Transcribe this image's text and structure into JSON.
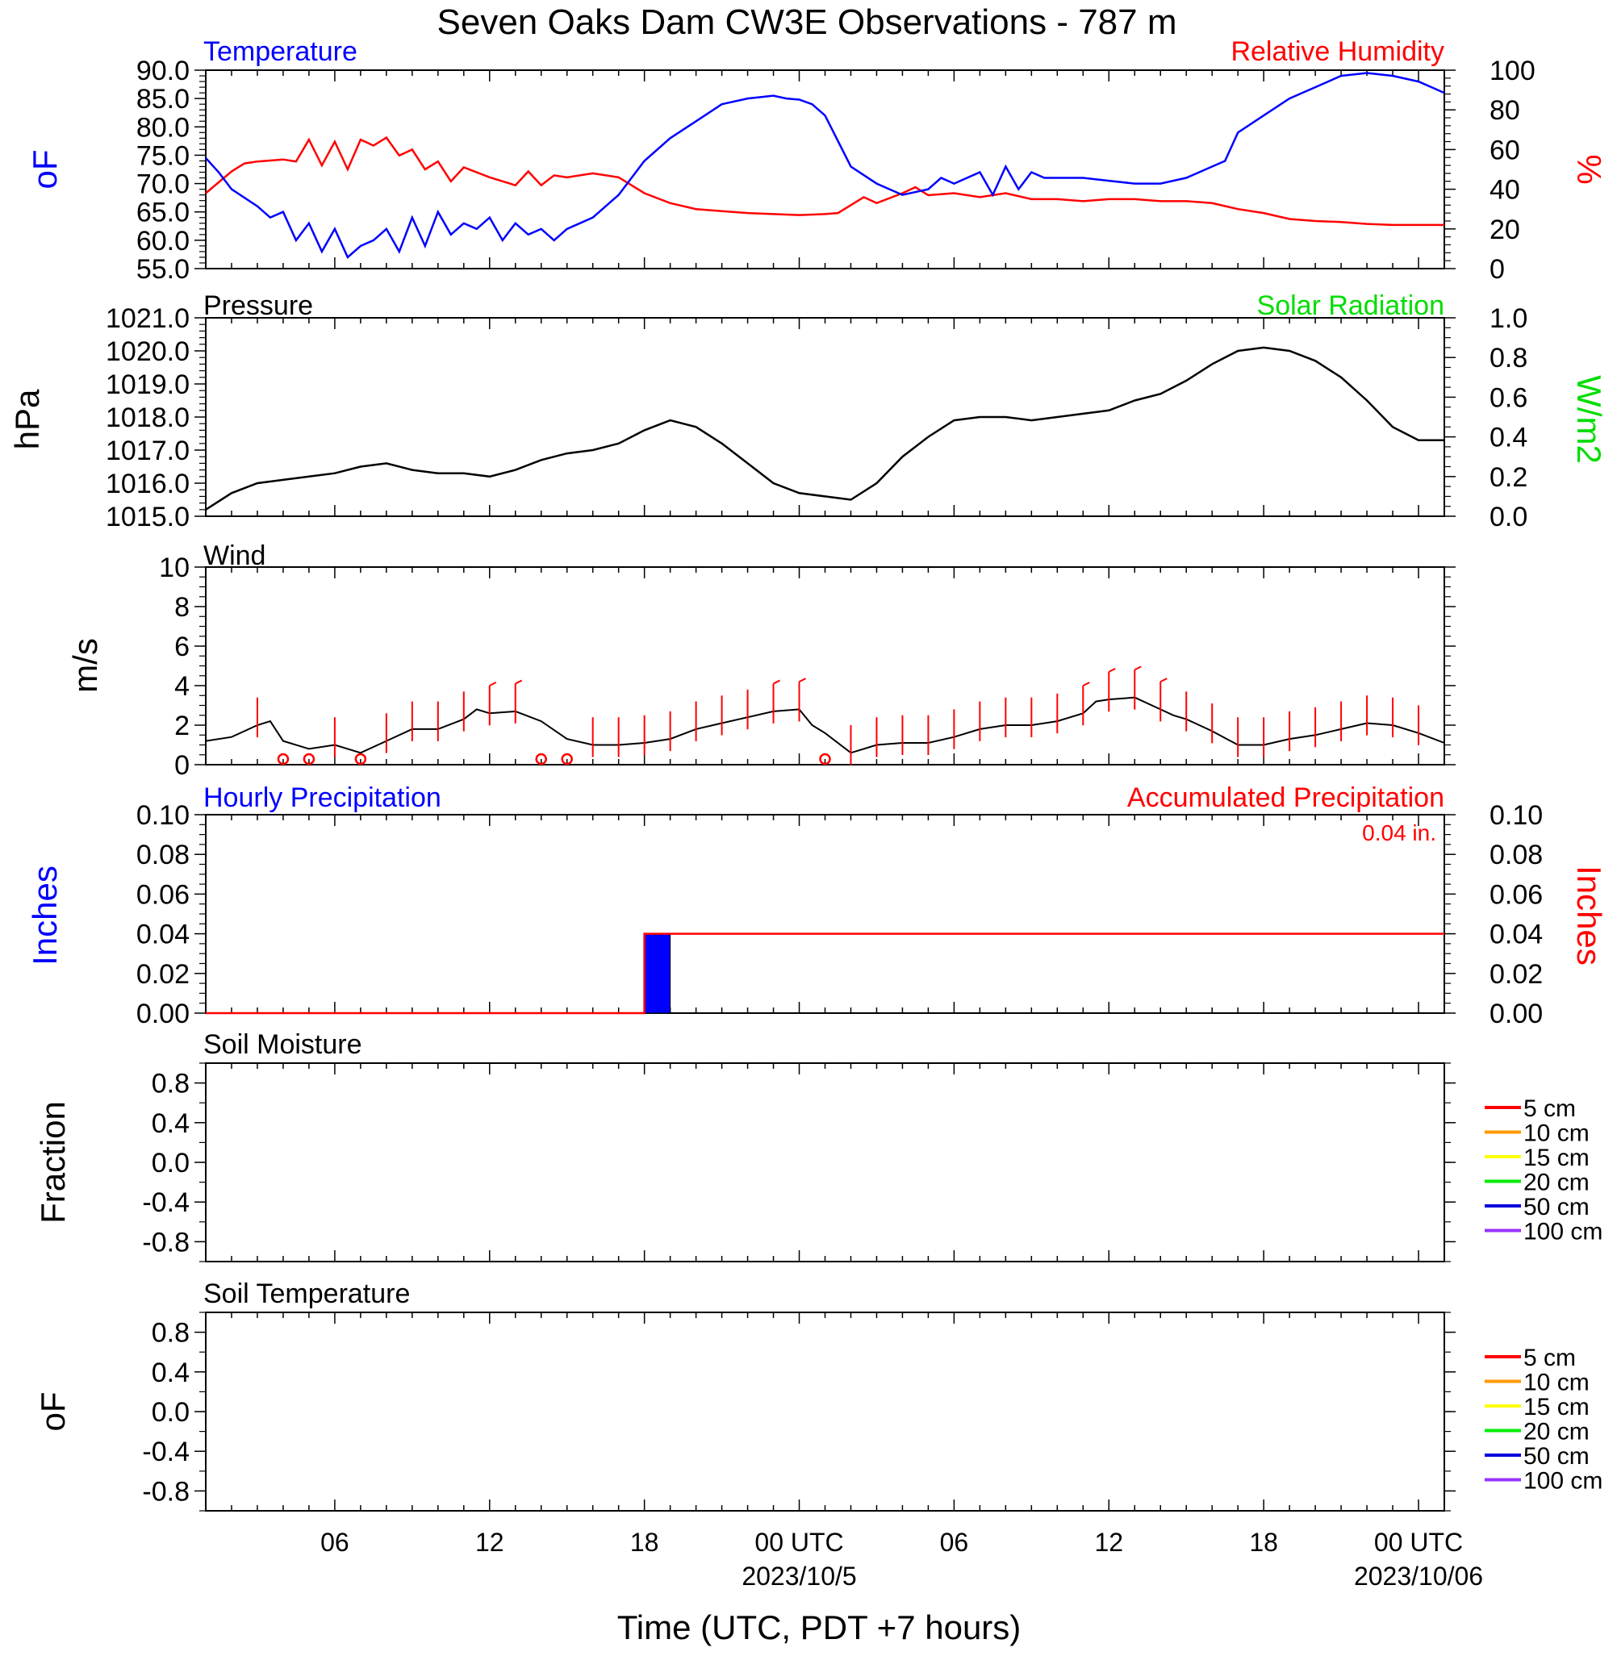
{
  "title": "Seven Oaks Dam CW3E Observations - 787 m",
  "colors": {
    "temperature": "#0000ff",
    "humidity": "#ff0000",
    "pressure": "#000000",
    "solar": "#00dd00",
    "wind": "#000000",
    "barbs": "#ff0000",
    "hourly_precip": "#0000ff",
    "accum_precip": "#ff0000",
    "axis": "#000000"
  },
  "x_axis": {
    "label": "Time (UTC, PDT +7 hours)",
    "range_hours": [
      0,
      48
    ],
    "ticks": [
      {
        "h": 5,
        "label": "06"
      },
      {
        "h": 11,
        "label": "12"
      },
      {
        "h": 17,
        "label": "18"
      },
      {
        "h": 23,
        "label": "00 UTC"
      },
      {
        "h": 29,
        "label": "06"
      },
      {
        "h": 35,
        "label": "12"
      },
      {
        "h": 41,
        "label": "18"
      },
      {
        "h": 47,
        "label": "00 UTC"
      }
    ],
    "dates": [
      {
        "h": 23,
        "label": "2023/10/5"
      },
      {
        "h": 47,
        "label": "2023/10/06"
      }
    ]
  },
  "panels": {
    "temp_rh": {
      "left_title": "Temperature",
      "right_title": "Relative Humidity",
      "left_unit": "oF",
      "right_unit": "%",
      "left_ticks": [
        "90.0",
        "85.0",
        "80.0",
        "75.0",
        "70.0",
        "65.0",
        "60.0",
        "55.0"
      ],
      "right_ticks": [
        "100",
        "80",
        "60",
        "40",
        "20",
        "0"
      ]
    },
    "pressure": {
      "left_title": "Pressure",
      "right_title": "Solar Radiation",
      "left_unit": "hPa",
      "right_unit": "W/m2",
      "left_ticks": [
        "1021.0",
        "1020.0",
        "1019.0",
        "1018.0",
        "1017.0",
        "1016.0",
        "1015.0"
      ],
      "right_ticks": [
        "1.0",
        "0.8",
        "0.6",
        "0.4",
        "0.2",
        "0.0"
      ]
    },
    "wind": {
      "left_title": "Wind",
      "left_unit": "m/s",
      "left_ticks": [
        "10",
        "8",
        "6",
        "4",
        "2",
        "0"
      ]
    },
    "precip": {
      "left_title": "Hourly Precipitation",
      "right_title": "Accumulated Precipitation",
      "total": "0.04 in.",
      "left_unit": "Inches",
      "right_unit": "Inches",
      "left_ticks": [
        "0.10",
        "0.08",
        "0.06",
        "0.04",
        "0.02",
        "0.00"
      ],
      "right_ticks": [
        "0.10",
        "0.08",
        "0.06",
        "0.04",
        "0.02",
        "0.00"
      ]
    },
    "soil_moisture": {
      "left_title": "Soil Moisture",
      "left_unit": "Fraction",
      "left_ticks": [
        "0.8",
        "0.4",
        "0.0",
        "-0.4",
        "-0.8"
      ]
    },
    "soil_temp": {
      "left_title": "Soil Temperature",
      "left_unit": "oF",
      "left_ticks": [
        "0.8",
        "0.4",
        "0.0",
        "-0.4",
        "-0.8"
      ]
    }
  },
  "soil_legend": [
    {
      "label": "5 cm",
      "color": "#ff0000"
    },
    {
      "label": "10 cm",
      "color": "#ff9900"
    },
    {
      "label": "15 cm",
      "color": "#ffff00"
    },
    {
      "label": "20 cm",
      "color": "#00ee00"
    },
    {
      "label": "50 cm",
      "color": "#0000dd"
    },
    {
      "label": "100 cm",
      "color": "#9933ff"
    }
  ],
  "chart_data": [
    {
      "type": "line",
      "title": "Temperature / Relative Humidity",
      "x_unit": "hours since start (0 = 2023-10-04 01 UTC)",
      "series": [
        {
          "name": "Temperature",
          "axis": "left",
          "ylim": [
            55,
            90
          ],
          "x": [
            0,
            0.5,
            1,
            2,
            2.5,
            3,
            3.5,
            4,
            4.5,
            5,
            5.5,
            6,
            6.5,
            7,
            7.5,
            8,
            8.5,
            9,
            9.5,
            10,
            10.5,
            11,
            11.5,
            12,
            12.5,
            13,
            13.5,
            14,
            15,
            16,
            17,
            18,
            19,
            20,
            21,
            22,
            22.5,
            23,
            23.5,
            24,
            25,
            26,
            26.5,
            27,
            28,
            28.5,
            29,
            30,
            30.5,
            31,
            31.5,
            32,
            32.5,
            33,
            34,
            35,
            36,
            37,
            38,
            39,
            39.5,
            40,
            41,
            42,
            43,
            44,
            45,
            46,
            47,
            48
          ],
          "y": [
            74.5,
            72,
            69,
            66,
            64,
            65,
            60,
            63,
            58,
            62,
            57,
            59,
            60,
            62,
            58,
            64,
            59,
            65,
            61,
            63,
            62,
            64,
            60,
            63,
            61,
            62,
            60,
            62,
            64,
            68,
            74,
            78,
            81,
            84,
            85,
            85.5,
            85,
            84.8,
            84,
            82,
            73,
            70,
            69,
            68,
            69,
            71,
            70,
            72,
            68,
            73,
            69,
            72,
            71,
            71,
            71,
            70.5,
            70,
            70,
            71,
            73,
            74,
            79,
            82,
            85,
            87,
            89,
            89.5,
            89,
            88,
            86
          ]
        },
        {
          "name": "Relative Humidity",
          "axis": "right",
          "ylim": [
            0,
            100
          ],
          "x": [
            0,
            1,
            1.5,
            2,
            3,
            3.5,
            4,
            4.5,
            5,
            5.5,
            6,
            6.5,
            7,
            7.5,
            8,
            8.5,
            9,
            9.5,
            10,
            11,
            12,
            12.5,
            13,
            13.5,
            14,
            15,
            16,
            17,
            18,
            19,
            20,
            21,
            22,
            23,
            24,
            24.5,
            25,
            25.5,
            26,
            27,
            27.5,
            28,
            29,
            30,
            31,
            32,
            33,
            34,
            35,
            36,
            37,
            38,
            39,
            40,
            41,
            42,
            43,
            44,
            45,
            46,
            47,
            48
          ],
          "y": [
            38,
            49,
            53,
            54,
            55,
            54,
            65,
            52,
            64,
            50,
            65,
            62,
            66,
            57,
            60,
            50,
            54,
            44,
            51,
            46,
            42,
            49,
            42,
            47,
            46,
            48,
            46,
            38,
            33,
            30,
            29,
            28,
            27.5,
            27,
            27.5,
            28,
            32,
            36,
            33,
            38,
            41,
            37,
            38,
            36,
            38,
            35,
            35,
            34,
            35,
            35,
            34,
            34,
            33,
            30,
            28,
            25,
            24,
            23.5,
            22.5,
            22,
            22,
            22
          ]
        }
      ]
    },
    {
      "type": "line",
      "title": "Pressure",
      "series": [
        {
          "name": "Pressure",
          "ylim": [
            1015,
            1021
          ],
          "x": [
            0,
            1,
            2,
            3,
            4,
            5,
            6,
            7,
            8,
            9,
            10,
            11,
            12,
            13,
            14,
            15,
            16,
            17,
            18,
            19,
            20,
            21,
            22,
            23,
            24,
            25,
            26,
            27,
            28,
            29,
            30,
            31,
            32,
            33,
            34,
            35,
            36,
            37,
            38,
            39,
            40,
            41,
            42,
            43,
            44,
            45,
            46,
            47,
            48
          ],
          "y": [
            1015.2,
            1015.7,
            1016.0,
            1016.1,
            1016.2,
            1016.3,
            1016.5,
            1016.6,
            1016.4,
            1016.3,
            1016.3,
            1016.2,
            1016.4,
            1016.7,
            1016.9,
            1017.0,
            1017.2,
            1017.6,
            1017.9,
            1017.7,
            1017.2,
            1016.6,
            1016.0,
            1015.7,
            1015.6,
            1015.5,
            1016.0,
            1016.8,
            1017.4,
            1017.9,
            1018.0,
            1018.0,
            1017.9,
            1018.0,
            1018.1,
            1018.2,
            1018.5,
            1018.7,
            1019.1,
            1019.6,
            1020.0,
            1020.1,
            1020.0,
            1019.7,
            1019.2,
            1018.5,
            1017.7,
            1017.3,
            1017.3
          ]
        }
      ]
    },
    {
      "type": "line",
      "title": "Wind",
      "series": [
        {
          "name": "Wind speed",
          "ylim": [
            0,
            10
          ],
          "x": [
            0,
            1,
            2,
            2.5,
            3,
            4,
            5,
            6,
            7,
            8,
            9,
            10,
            10.5,
            11,
            12,
            13,
            14,
            15,
            16,
            17,
            18,
            19,
            20,
            21,
            22,
            23,
            23.5,
            24,
            25,
            26,
            27,
            28,
            29,
            30,
            31,
            32,
            33,
            34,
            34.5,
            35,
            36,
            37,
            37.5,
            38,
            39,
            40,
            41,
            42,
            43,
            44,
            45,
            46,
            47,
            48
          ],
          "y": [
            1.2,
            1.4,
            2.0,
            2.2,
            1.2,
            0.8,
            1.0,
            0.6,
            1.2,
            1.8,
            1.8,
            2.3,
            2.8,
            2.6,
            2.7,
            2.2,
            1.3,
            1.0,
            1.0,
            1.1,
            1.3,
            1.8,
            2.1,
            2.4,
            2.7,
            2.8,
            2.0,
            1.6,
            0.6,
            1.0,
            1.1,
            1.1,
            1.4,
            1.8,
            2.0,
            2.0,
            2.2,
            2.6,
            3.2,
            3.3,
            3.4,
            2.8,
            2.5,
            2.3,
            1.7,
            1.0,
            1.0,
            1.3,
            1.5,
            1.8,
            2.1,
            2.0,
            1.6,
            1.1
          ]
        }
      ],
      "barb_hours": [
        2,
        3,
        4,
        5,
        6,
        7,
        8,
        9,
        10,
        11,
        12,
        13,
        14,
        15,
        16,
        17,
        18,
        19,
        20,
        21,
        22,
        23,
        24,
        25,
        26,
        27,
        28,
        29,
        30,
        31,
        32,
        33,
        34,
        35,
        36,
        37,
        38,
        39,
        40,
        41,
        42,
        43,
        44,
        45,
        46,
        47
      ],
      "calm_hours": [
        3,
        4,
        6,
        13,
        14,
        24
      ]
    },
    {
      "type": "bar",
      "title": "Hourly Precipitation",
      "series": [
        {
          "name": "Hourly Precipitation",
          "x": [
            17
          ],
          "values": [
            0.04
          ],
          "ylim": [
            0,
            0.1
          ]
        },
        {
          "name": "Accumulated Precipitation",
          "x": [
            0,
            17,
            17,
            48
          ],
          "values": [
            0,
            0,
            0.04,
            0.04
          ],
          "ylim": [
            0,
            0.1
          ]
        }
      ]
    },
    {
      "type": "line",
      "title": "Soil Moisture",
      "ylim": [
        -1,
        1
      ],
      "series": []
    },
    {
      "type": "line",
      "title": "Soil Temperature",
      "ylim": [
        -1,
        1
      ],
      "series": []
    }
  ]
}
